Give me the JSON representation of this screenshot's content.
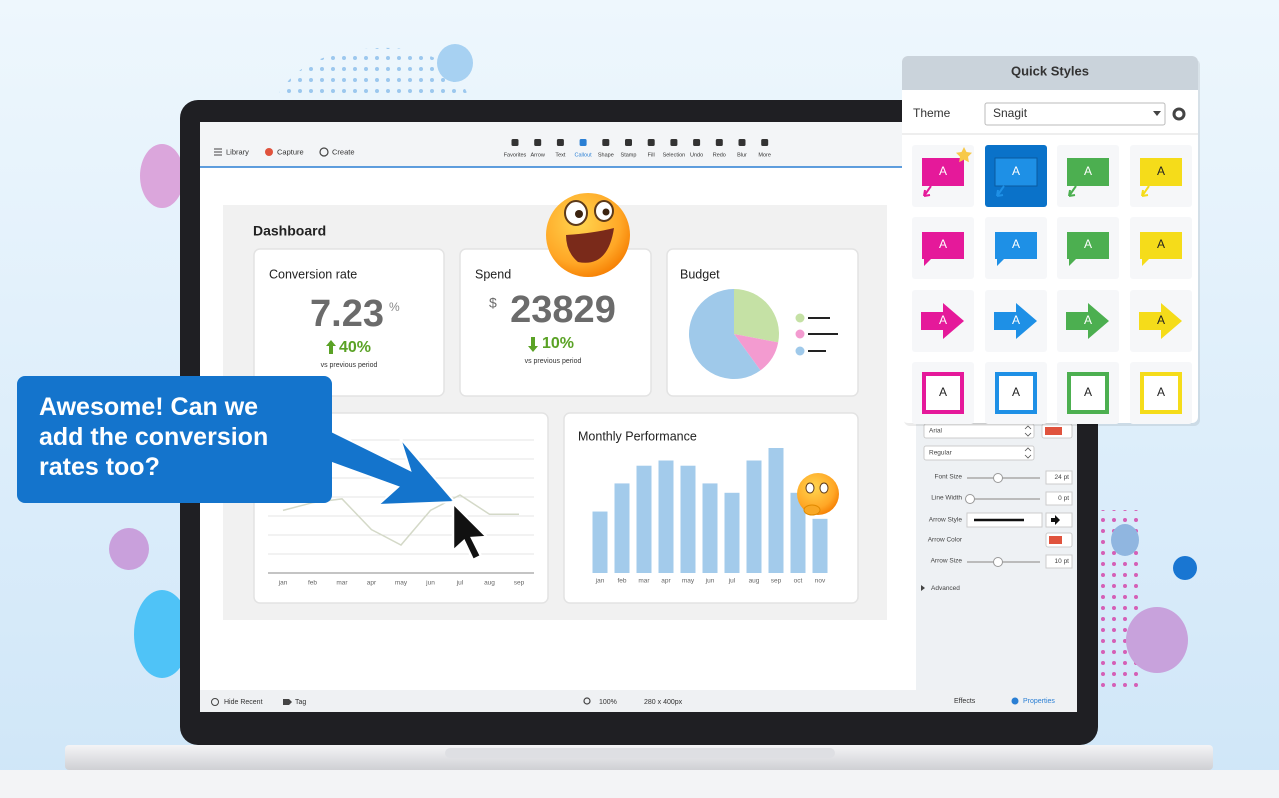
{
  "toolbar": {
    "left": [
      "Library",
      "Capture",
      "Create"
    ],
    "tools": [
      "Favorites",
      "Arrow",
      "Text",
      "Callout",
      "Shape",
      "Stamp",
      "Fill",
      "Selection",
      "Undo",
      "Redo",
      "Blur",
      "More"
    ],
    "active_tool": 3
  },
  "dashboard": {
    "title": "Dashboard",
    "conversion": {
      "label": "Conversion rate",
      "value": "7.23",
      "unit": "%",
      "change": "40%",
      "note": "vs previous period"
    },
    "spend": {
      "label": "Spend",
      "currency": "$",
      "value": "23829",
      "change": "10%",
      "note": "vs previous period"
    }
  },
  "chart_data": [
    {
      "type": "pie",
      "title": "Budget",
      "values": [
        28,
        12,
        60
      ],
      "colors": [
        "#c5e1a5",
        "#f39bd0",
        "#9fc9ea"
      ]
    },
    {
      "type": "line",
      "categories": [
        "jan",
        "feb",
        "mar",
        "apr",
        "may",
        "jun",
        "jul",
        "aug",
        "sep"
      ],
      "values": [
        40,
        44,
        46,
        30,
        22,
        40,
        48,
        38,
        38
      ],
      "color": "#d4d9c8",
      "grid": true
    },
    {
      "type": "bar",
      "title": "Monthly Performance",
      "categories": [
        "jan",
        "feb",
        "mar",
        "apr",
        "may",
        "jun",
        "jul",
        "aug",
        "sep",
        "oct",
        "nov"
      ],
      "values": [
        59,
        86,
        103,
        108,
        103,
        86,
        77,
        108,
        120,
        77,
        52
      ],
      "color": "#a3cbeb"
    }
  ],
  "callout": {
    "text": "Awesome! Can we add the conversion rates too?",
    "lines": [
      "Awesome! Can we",
      "add the conversion",
      "rates too?"
    ]
  },
  "quick_styles": {
    "title": "Quick Styles",
    "theme_label": "Theme",
    "theme": "Snagit",
    "label": "A",
    "colors": [
      "#e5199a",
      "#1e90e6",
      "#4caf50",
      "#f5dc1a"
    ],
    "shapes": [
      "callout",
      "bubble",
      "arrow",
      "outline"
    ],
    "selected": [
      0,
      1
    ]
  },
  "properties": {
    "font": "Arial",
    "weight": "Regular",
    "fields": [
      {
        "label": "Font Size",
        "value": "24 pt",
        "kind": "slider"
      },
      {
        "label": "Line Width",
        "value": "0 pt",
        "kind": "slider"
      },
      {
        "label": "Arrow Style",
        "kind": "style"
      },
      {
        "label": "Arrow Color",
        "kind": "color"
      },
      {
        "label": "Arrow Size",
        "value": "10 pt",
        "kind": "slider"
      }
    ],
    "advanced": "Advanced"
  },
  "bottom_bar": {
    "hide_recent": "Hide Recent",
    "tag": "Tag",
    "zoom": "100%",
    "size": "280 x 400px",
    "effects": "Effects",
    "properties": "Properties"
  }
}
